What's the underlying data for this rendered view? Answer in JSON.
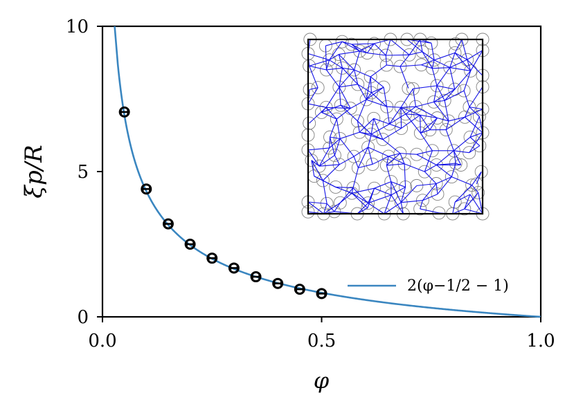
{
  "chart_data": {
    "type": "scatter",
    "xlabel": "φ",
    "ylabel": "ξp/R",
    "xlim": [
      0,
      1
    ],
    "ylim": [
      0,
      10
    ],
    "x_ticks": [
      "0.0",
      "0.5",
      "1.0"
    ],
    "y_ticks": [
      "0",
      "5",
      "10"
    ],
    "grid": false,
    "legend_position": "lower-right",
    "series": [
      {
        "kind": "points",
        "marker": "open-circle",
        "color": "#000000",
        "x": [
          0.05,
          0.1,
          0.15,
          0.2,
          0.25,
          0.3,
          0.35,
          0.4,
          0.45,
          0.5
        ],
        "y": [
          7.05,
          4.4,
          3.2,
          2.5,
          2.02,
          1.68,
          1.38,
          1.15,
          0.95,
          0.8
        ],
        "xerr": 0.008
      },
      {
        "kind": "curve",
        "name": "2(φ−1/2 − 1)",
        "formula": "2*(x^-0.5 - 1)",
        "color": "#3a86c0"
      }
    ],
    "inset": {
      "description_kind": "disk-packing-network",
      "edge_color": "#1010e6",
      "disk_color": "#808080",
      "border_color": "#000000"
    }
  }
}
